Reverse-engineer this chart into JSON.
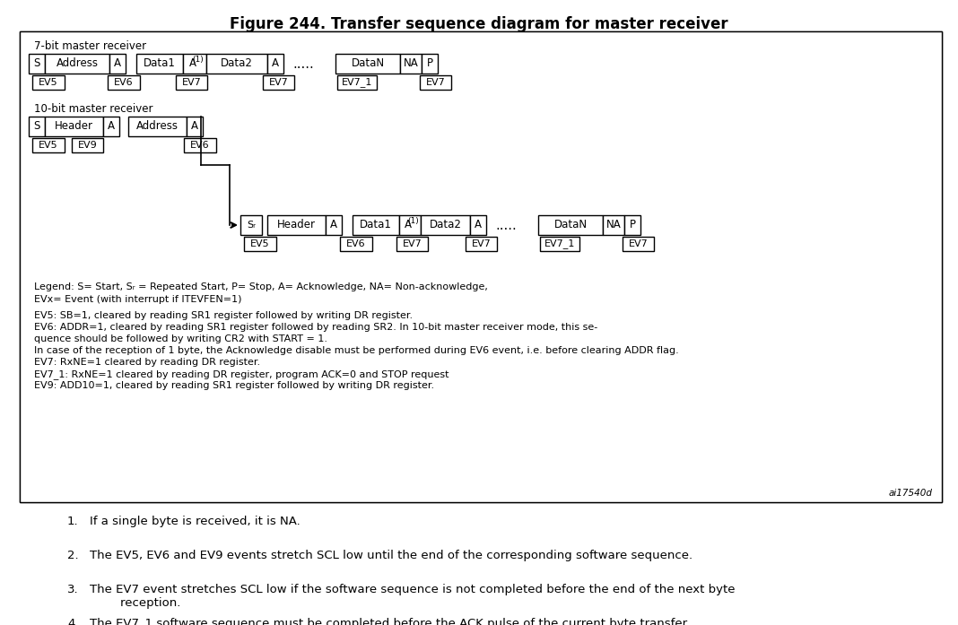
{
  "title": "Figure 244. Transfer sequence diagram for master receiver",
  "title_fontsize": 12,
  "background_color": "#ffffff",
  "box_edge_color": "#000000",
  "box_face_color": "#ffffff",
  "text_color": "#000000",
  "font_family": "Arial",
  "diagram_font_size": 8.5,
  "label_font_size": 8.0,
  "legend_font_size": 8.0,
  "footnote_font_size": 9.5,
  "watermark": "ai17540d",
  "ev_lines": [
    "EV5: SB=1, cleared by reading SR1 register followed by writing DR register.",
    "EV6: ADDR=1, cleared by reading SR1 register followed by reading SR2. In 10-bit master receiver mode, this se-",
    "quence should be followed by writing CR2 with START = 1.",
    "In case of the reception of 1 byte, the Acknowledge disable must be performed during EV6 event, i.e. before clearing ADDR flag.",
    "EV7: RxNE=1 cleared by reading DR register.",
    "EV7_1: RxNE=1 cleared by reading DR register, program ACK=0 and STOP request",
    "EV9: ADD10=1, cleared by reading SR1 register followed by writing DR register."
  ]
}
